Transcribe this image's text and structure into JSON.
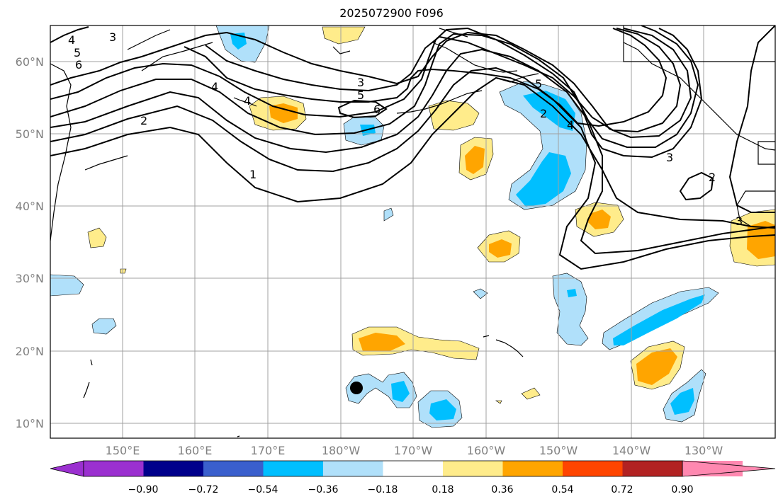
{
  "title": "2025072900 F096",
  "colors": {
    "bins": [
      "#9b30d0",
      "#00008b",
      "#3a5fcd",
      "#00bfff",
      "#b0e0fa",
      "#ffffff",
      "#ffec8b",
      "#ffa500",
      "#ff4500",
      "#b22222",
      "#ff88b0"
    ],
    "contour": "#000000",
    "grid": "#a0a0a0",
    "coast": "#000000"
  },
  "map": {
    "lon_range": "140°E to 118°W",
    "lat_range": "8°N to 65°N",
    "lat_ticks": [
      "10°N",
      "20°N",
      "30°N",
      "40°N",
      "50°N",
      "60°N"
    ],
    "lon_ticks": [
      "150°E",
      "160°E",
      "170°E",
      "180°W",
      "170°W",
      "160°W",
      "150°W",
      "140°W",
      "130°W"
    ],
    "contour_labels": [
      "3",
      "4",
      "5",
      "6",
      "2",
      "4",
      "3",
      "5",
      "6",
      "4",
      "1",
      "2",
      "5",
      "4",
      "3",
      "2",
      "3"
    ]
  },
  "colorbar": {
    "labels": [
      "−0.90",
      "−0.72",
      "−0.54",
      "−0.36",
      "−0.18",
      "0.18",
      "0.36",
      "0.54",
      "0.72",
      "0.90"
    ]
  },
  "marker": {
    "name": "storm-center",
    "color": "#000000"
  }
}
